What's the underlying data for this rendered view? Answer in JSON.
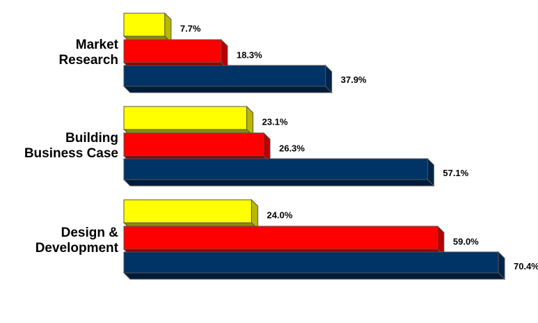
{
  "chart_data": {
    "type": "bar",
    "orientation": "horizontal",
    "categories": [
      [
        "Market",
        "Research"
      ],
      [
        "Building",
        "Business Case"
      ],
      [
        "Design &",
        "Development"
      ]
    ],
    "series": [
      {
        "values": [
          7.7,
          23.1,
          24.0
        ],
        "labels": [
          "7.7%",
          "23.1%",
          "24.0%"
        ],
        "color": "#ffff00"
      },
      {
        "values": [
          18.3,
          26.3,
          59.0
        ],
        "labels": [
          "18.3%",
          "26.3%",
          "59.0%"
        ],
        "color": "#ff0000"
      },
      {
        "values": [
          37.9,
          57.1,
          70.4
        ],
        "labels": [
          "37.9%",
          "57.1%",
          "70.4%"
        ],
        "color": "#003366"
      }
    ],
    "xlim": [
      0,
      70.4
    ],
    "grid": false,
    "legend": "none",
    "style": "3d"
  }
}
